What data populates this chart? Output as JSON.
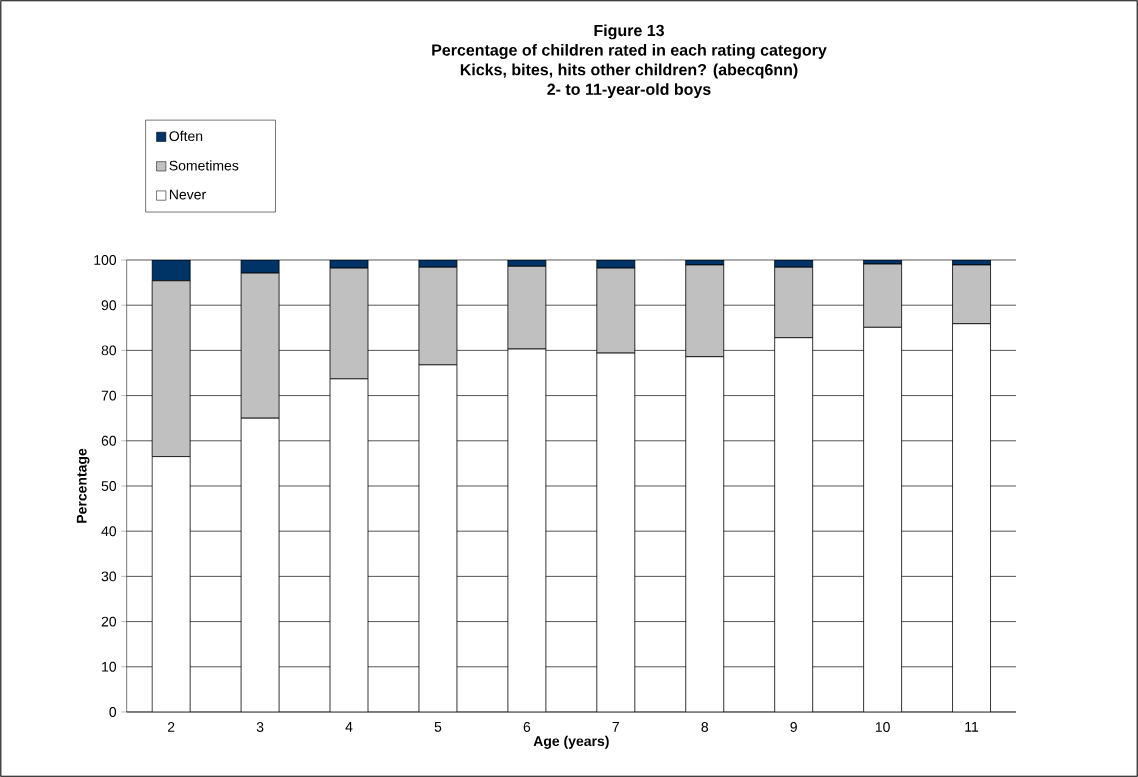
{
  "chart_data": {
    "type": "bar",
    "title": "Figure 13",
    "subtitle": "Percentage of children rated in each rating category",
    "annotations": [
      "Kicks, bites, hits other children? (abecq6nn)",
      "2- to 11-year-old boys"
    ],
    "xlabel": "Age (years)",
    "ylabel": "Percentage",
    "categories": [
      "2",
      "3",
      "4",
      "5",
      "6",
      "7",
      "8",
      "9",
      "10",
      "11"
    ],
    "stacked": true,
    "series": [
      {
        "name": "Never",
        "color": "#ffffff",
        "values": [
          56.5,
          65.0,
          73.7,
          76.8,
          80.3,
          79.4,
          78.6,
          82.8,
          85.1,
          85.9
        ]
      },
      {
        "name": "Sometimes",
        "color": "#c0c0c0",
        "values": [
          38.9,
          32.1,
          24.5,
          21.6,
          18.3,
          18.8,
          20.3,
          15.6,
          14.0,
          13.0
        ]
      },
      {
        "name": "Often",
        "color": "#003366",
        "values": [
          4.6,
          2.9,
          1.8,
          1.6,
          1.4,
          1.8,
          1.1,
          1.6,
          0.9,
          1.1
        ]
      }
    ],
    "ylim": [
      0,
      100
    ],
    "yticks": [
      0,
      10,
      20,
      30,
      40,
      50,
      60,
      70,
      80,
      90,
      100
    ],
    "grid": "y",
    "legend": "top left"
  }
}
